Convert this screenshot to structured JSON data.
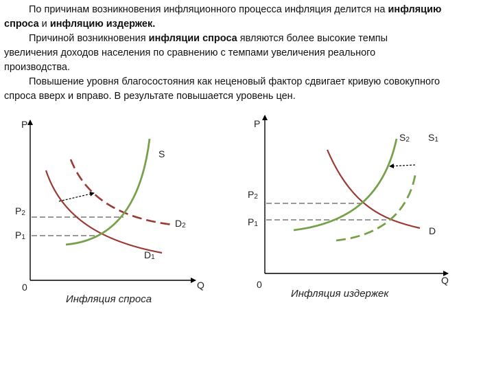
{
  "paragraphs": {
    "p1_a": "По причинам возникновения инфляционного процесса инфляция делится на ",
    "p1_b": "инфляцию спроса",
    "p1_c": " и ",
    "p1_d": "инфляцию издержек.",
    "p2_a": "Причиной возникновения ",
    "p2_b": "инфляции спроса",
    "p2_c": " являются более высокие темпы увеличения доходов населения по сравнению с темпами увеличения реального производства.",
    "p3": "Повышение уровня благосостояния как неценовый фактор сдвигает кривую совокупного спроса вверх и вправо. В результате повышается уровень цен."
  },
  "left_graph": {
    "axis_y": "P",
    "axis_x": "Q",
    "origin": "0",
    "supply": "S",
    "d2_main": "D",
    "d2_sub": "2",
    "d1_main": "D",
    "d1_sub": "1",
    "p2_main": "P",
    "p2_sub": "2",
    "p1_main": "P",
    "p1_sub": "1",
    "caption": "Инфляция спроса"
  },
  "right_graph": {
    "axis_y": "P",
    "axis_x": "Q",
    "origin": "0",
    "s2_main": "S",
    "s2_sub": "2",
    "s1_main": "S",
    "s1_sub": "1",
    "demand": "D",
    "p2_main": "P",
    "p2_sub": "2",
    "p1_main": "P",
    "p1_sub": "1",
    "caption": "Инфляция издержек"
  },
  "colors": {
    "supply": "#77a04a",
    "demand": "#9b3a34",
    "axis": "#000000",
    "guide": "#333333"
  }
}
